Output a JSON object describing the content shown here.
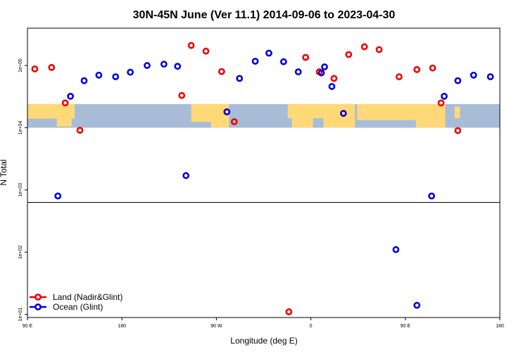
{
  "colors": {
    "land": "#ee0000",
    "ocean": "#0000dd",
    "map_land": "#ffd978",
    "map_ocean": "#a8bcd8",
    "frame": "#000000"
  },
  "chart_data": {
    "type": "scatter",
    "title": "30N-45N June (Ver 11.1)   2014-09-06 to 2023-04-30",
    "xlabel": "Longitude (deg E)",
    "ylabel": "N Total",
    "x_ticks": [
      {
        "value": 90,
        "label": "90 E"
      },
      {
        "value": 180,
        "label": "180"
      },
      {
        "value": 270,
        "label": "90 W"
      },
      {
        "value": 360,
        "label": "0"
      },
      {
        "value": 450,
        "label": "90 E"
      },
      {
        "value": 540,
        "label": "180"
      }
    ],
    "y_ticks": [
      {
        "value": 10,
        "label": "1e+01"
      },
      {
        "value": 100,
        "label": "1e+02"
      },
      {
        "value": 1000,
        "label": "1e+03"
      },
      {
        "value": 10000,
        "label": "1e+04"
      },
      {
        "value": 100000,
        "label": "1e+05"
      }
    ],
    "xlim": [
      90,
      540
    ],
    "ylim_log10": [
      0.95,
      5.6
    ],
    "log_scale_y": true,
    "upper_panel_min_log10": 2.8,
    "map_band_log10": [
      4.0,
      4.38
    ],
    "legend_position": "bottom-left",
    "series": [
      {
        "name": "Land (Nadir&Glint)",
        "color": "#ee0000",
        "points": [
          {
            "x": 97,
            "y": 88000
          },
          {
            "x": 113,
            "y": 93000
          },
          {
            "x": 126,
            "y": 25000
          },
          {
            "x": 140,
            "y": 9100
          },
          {
            "x": 237,
            "y": 33000
          },
          {
            "x": 246,
            "y": 210000
          },
          {
            "x": 260,
            "y": 170000
          },
          {
            "x": 275,
            "y": 80000
          },
          {
            "x": 287,
            "y": 12500
          },
          {
            "x": 355,
            "y": 135000
          },
          {
            "x": 368,
            "y": 79000
          },
          {
            "x": 382,
            "y": 62000
          },
          {
            "x": 396,
            "y": 150000
          },
          {
            "x": 411,
            "y": 200000
          },
          {
            "x": 425,
            "y": 180000
          },
          {
            "x": 444,
            "y": 66000
          },
          {
            "x": 461,
            "y": 86000
          },
          {
            "x": 476,
            "y": 91000
          },
          {
            "x": 484,
            "y": 25000
          },
          {
            "x": 500,
            "y": 9000
          },
          {
            "x": 339,
            "y": 11
          }
        ]
      },
      {
        "name": "Ocean (Glint)",
        "color": "#0000dd",
        "points": [
          {
            "x": 119,
            "y": 800
          },
          {
            "x": 131,
            "y": 32000
          },
          {
            "x": 144,
            "y": 57000
          },
          {
            "x": 158,
            "y": 70000
          },
          {
            "x": 174,
            "y": 66000
          },
          {
            "x": 188,
            "y": 78000
          },
          {
            "x": 204,
            "y": 100000
          },
          {
            "x": 220,
            "y": 105000
          },
          {
            "x": 233,
            "y": 97000
          },
          {
            "x": 241,
            "y": 1700
          },
          {
            "x": 280,
            "y": 18000
          },
          {
            "x": 292,
            "y": 62000
          },
          {
            "x": 307,
            "y": 117000
          },
          {
            "x": 320,
            "y": 158000
          },
          {
            "x": 334,
            "y": 115000
          },
          {
            "x": 348,
            "y": 79000
          },
          {
            "x": 370,
            "y": 76000
          },
          {
            "x": 373,
            "y": 95000
          },
          {
            "x": 380,
            "y": 46000
          },
          {
            "x": 391,
            "y": 17000
          },
          {
            "x": 441,
            "y": 110
          },
          {
            "x": 461,
            "y": 14
          },
          {
            "x": 475,
            "y": 800
          },
          {
            "x": 487,
            "y": 32000
          },
          {
            "x": 500,
            "y": 57000
          },
          {
            "x": 515,
            "y": 70000
          },
          {
            "x": 531,
            "y": 66000
          }
        ]
      }
    ]
  }
}
